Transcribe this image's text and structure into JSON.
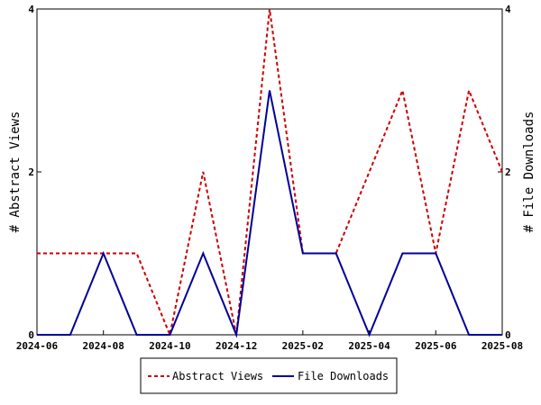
{
  "chart_data": {
    "type": "line",
    "x": [
      "2024-06",
      "2024-07",
      "2024-08",
      "2024-09",
      "2024-10",
      "2024-11",
      "2024-12",
      "2025-01",
      "2025-02",
      "2025-03",
      "2025-04",
      "2025-05",
      "2025-06",
      "2025-07",
      "2025-08"
    ],
    "x_ticks": [
      "2024-06",
      "2024-08",
      "2024-10",
      "2024-12",
      "2025-02",
      "2025-04",
      "2025-06",
      "2025-08"
    ],
    "series": [
      {
        "name": "Abstract Views",
        "axis": "left",
        "color": "#cc0000",
        "style": "dashed",
        "values": [
          1,
          1,
          1,
          1,
          0,
          2,
          0,
          4,
          1,
          1,
          2,
          3,
          1,
          3,
          2
        ]
      },
      {
        "name": "File Downloads",
        "axis": "right",
        "color": "#000099",
        "style": "solid",
        "values": [
          0,
          0,
          1,
          0,
          0,
          1,
          0,
          3,
          1,
          1,
          0,
          1,
          1,
          0,
          0
        ]
      }
    ],
    "ylabel": "# Abstract Views",
    "y2label": "# File Downloads",
    "ylim": [
      0,
      4
    ],
    "y2lim": [
      0,
      4
    ],
    "y_ticks": [
      0,
      2,
      4
    ],
    "y2_ticks": [
      0,
      2,
      4
    ],
    "grid": false,
    "legend": "bottom-center"
  }
}
